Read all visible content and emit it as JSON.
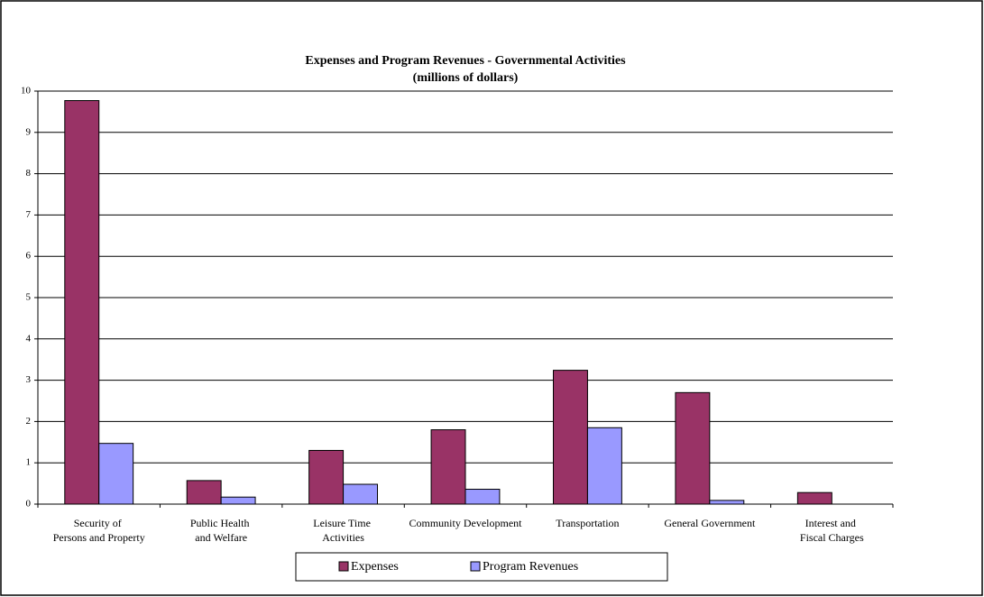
{
  "chart_data": {
    "type": "bar",
    "title": "Expenses and Program Revenues - Governmental Activities",
    "subtitle": "(millions of dollars)",
    "categories": [
      "Security of Persons and Property",
      "Public Health and Welfare",
      "Leisure Time Activities",
      "Community Development",
      "Transportation",
      "General Government",
      "Interest and Fiscal Charges"
    ],
    "series": [
      {
        "name": "Expenses",
        "color": "#993366",
        "values": [
          9.77,
          0.57,
          1.3,
          1.8,
          3.24,
          2.7,
          0.28
        ]
      },
      {
        "name": "Program Revenues",
        "color": "#9999ff",
        "values": [
          1.47,
          0.17,
          0.48,
          0.36,
          1.85,
          0.09,
          0
        ]
      }
    ],
    "ylim": [
      0,
      10
    ],
    "yticks": [
      0,
      1,
      2,
      3,
      4,
      5,
      6,
      7,
      8,
      9,
      10
    ],
    "grid": true,
    "legend": "bottom"
  }
}
